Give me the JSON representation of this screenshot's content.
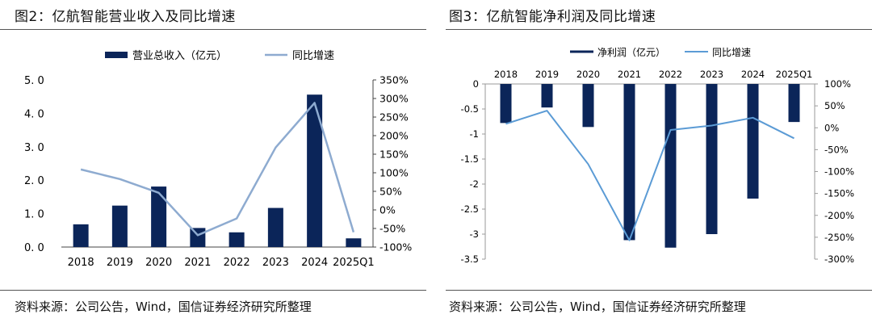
{
  "colors": {
    "bar": "#0b2559",
    "line": "#8eabd0",
    "line2": "#5b9bd5",
    "axis": "#444444"
  },
  "left": {
    "title": "图2：亿航智能营业收入及同比增速",
    "source": "资料来源：公司公告，Wind，国信证券经济研究所整理",
    "legend": {
      "bar": "营业总收入（亿元）",
      "line": "同比增速"
    },
    "yticks_left": [
      "5. 0",
      "4. 0",
      "3. 0",
      "2. 0",
      "1. 0",
      "0. 0"
    ],
    "yticks_right": [
      "350%",
      "300%",
      "250%",
      "200%",
      "150%",
      "100%",
      "50%",
      "0%",
      "-50%",
      "-100%"
    ]
  },
  "right": {
    "title": "图3：亿航智能净利润及同比增速",
    "source": "资料来源：公司公告，Wind，国信证券经济研究所整理",
    "legend": {
      "bar": "净利润（亿元）",
      "line": "同比增速"
    },
    "yticks_left": [
      "0",
      "-0.5",
      "-1",
      "-1.5",
      "-2",
      "-2.5",
      "-3",
      "-3.5"
    ],
    "yticks_right": [
      "100%",
      "50%",
      "0%",
      "-50%",
      "-100%",
      "-150%",
      "-200%",
      "-250%",
      "-300%"
    ]
  },
  "chart_data": [
    {
      "type": "bar",
      "title": "图2：亿航智能营业收入及同比增速",
      "categories": [
        "2018",
        "2019",
        "2020",
        "2021",
        "2022",
        "2023",
        "2024",
        "2025Q1"
      ],
      "series": [
        {
          "name": "营业总收入（亿元）",
          "type": "bar",
          "axis": "left",
          "values": [
            0.68,
            1.24,
            1.81,
            0.57,
            0.44,
            1.17,
            4.56,
            0.26
          ]
        },
        {
          "name": "同比增速",
          "type": "line",
          "axis": "right",
          "unit": "%",
          "values": [
            109,
            83,
            46,
            -68,
            -23,
            168,
            288,
            -60
          ]
        }
      ],
      "ylim_left": [
        0,
        5
      ],
      "ylim_right": [
        -100,
        350
      ],
      "legend": "top-center"
    },
    {
      "type": "bar",
      "title": "图3：亿航智能净利润及同比增速",
      "categories": [
        "2018",
        "2019",
        "2020",
        "2021",
        "2022",
        "2023",
        "2024",
        "2025Q1"
      ],
      "series": [
        {
          "name": "净利润（亿元）",
          "type": "bar",
          "axis": "left",
          "values": [
            -0.78,
            -0.47,
            -0.86,
            -3.12,
            -3.27,
            -3.0,
            -2.29,
            -0.76
          ]
        },
        {
          "name": "同比增速",
          "type": "line",
          "axis": "right",
          "unit": "%",
          "values": [
            9,
            39,
            -83,
            -257,
            -5,
            5,
            23,
            -24
          ]
        }
      ],
      "ylim_left": [
        -3.5,
        0
      ],
      "ylim_right": [
        -300,
        100
      ],
      "legend": "top-center"
    }
  ]
}
